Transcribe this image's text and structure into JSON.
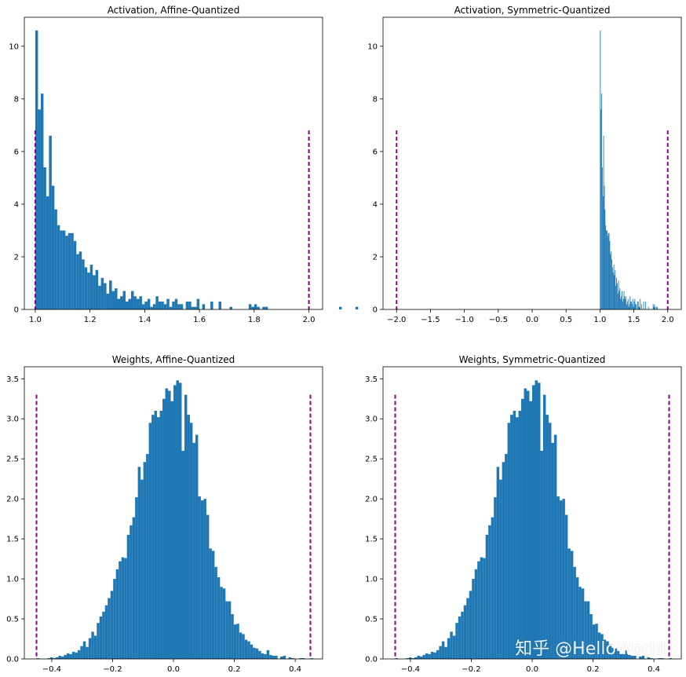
{
  "colors": {
    "bar": "#1f77b4",
    "range_line": "#8b008b"
  },
  "watermark": "知乎 @HelloWorld",
  "chart_data": [
    {
      "type": "bar",
      "title": "Activation, Affine-Quantized",
      "xlim": [
        0.96,
        2.05
      ],
      "ylim": [
        0,
        11.1
      ],
      "xticks": [
        1.0,
        1.2,
        1.4,
        1.6,
        1.8,
        2.0
      ],
      "xtick_labels": [
        "1.0",
        "1.2",
        "1.4",
        "1.6",
        "1.8",
        "2.0"
      ],
      "yticks": [
        0,
        2,
        4,
        6,
        8,
        10
      ],
      "ytick_labels": [
        "0",
        "2",
        "4",
        "6",
        "8",
        "10"
      ],
      "bin_start": 1.0,
      "bin_width": 0.01,
      "values": [
        10.6,
        7.6,
        8.2,
        5.4,
        4.3,
        6.6,
        4.7,
        3.8,
        3.2,
        3.0,
        3.0,
        2.8,
        2.9,
        2.9,
        2.6,
        2.1,
        2.2,
        1.9,
        1.6,
        1.4,
        1.7,
        1.3,
        1.5,
        0.9,
        1.2,
        1.0,
        0.6,
        1.1,
        0.7,
        0.8,
        0.4,
        0.5,
        0.7,
        0.3,
        0.4,
        0.7,
        0.5,
        0.4,
        0.5,
        0.2,
        0.3,
        0.4,
        0.1,
        0.2,
        0.5,
        0.3,
        0.3,
        0.2,
        0.4,
        0.1,
        0.3,
        0.4,
        0.2,
        0.2,
        0.0,
        0.3,
        0.3,
        0.1,
        0.1,
        0.4,
        0.0,
        0.2,
        0.0,
        0.0,
        0.3,
        0.0,
        0.0,
        0.3,
        0.0,
        0.0,
        0.0,
        0.1,
        0.0,
        0.0,
        0.0,
        0.0,
        0.0,
        0.0,
        0.2,
        0.1,
        0.2,
        0.1,
        0.0,
        0.1,
        0.1,
        0.0,
        0.0,
        0.0,
        0.0,
        0.0,
        0.0,
        0.0,
        0.0,
        0.0,
        0.0,
        0.0,
        0.0,
        0.0,
        0.0,
        0.0,
        0.0,
        0.0,
        0.0,
        0.0,
        0.0,
        0.0,
        0.0,
        0.0,
        0.0,
        0.0,
        0.0,
        0.1,
        0.0,
        0.0,
        0.0,
        0.0,
        0.0,
        0.1,
        0.0,
        0.0,
        0.0,
        0.0,
        0.0,
        0.0,
        0.0,
        0.0,
        0.0,
        0.0,
        0.0,
        0.0,
        0.0,
        0.0,
        0.0,
        0.0,
        0.0,
        0.0,
        0.0,
        0.0,
        0.0,
        0.0,
        0.0,
        0.0,
        0.0,
        0.0,
        0.0,
        0.0,
        0.0,
        0.0,
        0.0,
        0.0,
        0.0,
        0.0,
        0.0,
        0.0,
        0.0,
        0.0,
        0.0,
        0.0,
        0.0,
        0.0,
        0.0,
        0.0,
        0.0,
        0.0,
        0.0,
        0.0,
        0.0,
        0.0,
        0.0,
        0.0,
        0.0,
        0.0,
        0.0,
        0.0,
        0.0,
        0.0,
        0.0,
        0.0,
        0.0,
        0.0,
        0.0,
        0.0,
        0.0,
        0.0,
        0.0,
        0.0,
        0.0,
        0.0,
        0.0,
        0.0,
        0.0,
        0.0,
        0.0,
        0.0,
        0.0,
        0.0,
        0.0,
        0.0,
        0.0,
        0.0,
        0.0,
        0.0,
        0.0,
        0.0,
        0.0,
        0.0,
        0.0,
        0.0,
        0.0,
        0.0,
        0.0,
        0.0,
        0.0,
        0.0,
        0.0,
        0.0,
        0.0,
        0.0,
        0.0,
        0.0,
        0.0,
        0.0,
        0.0,
        0.0,
        0.0,
        0.0,
        0.0,
        0.0,
        0.0,
        0.0,
        0.0,
        0.0,
        0.0,
        0.0,
        0.0,
        0.0,
        0.0,
        0.0,
        0.0,
        0.0,
        0.0,
        0.0,
        0.0,
        0.0,
        0.0,
        0.0,
        0.0,
        0.0,
        0.0,
        0.0,
        0.0,
        0.0,
        0.0,
        0.0,
        0.0,
        0.0,
        0.0,
        0.0,
        0.0,
        0.0,
        0.0,
        0.0,
        0.0,
        0.0,
        0.0,
        0.0,
        0.0,
        0.0,
        0.0,
        0.0,
        0.0,
        0.0,
        0.0,
        0.0,
        0.0,
        0.0,
        0.0,
        0.0,
        0.0,
        0.0,
        0.0,
        0.0,
        0.0,
        0.0,
        0.0,
        0.0,
        0.0,
        0.0,
        0.0,
        0.0,
        0.0,
        0.0,
        0.0,
        0.0
      ],
      "range_lines": [
        1.0,
        2.0
      ],
      "range_line_top": 6.8
    },
    {
      "type": "bar",
      "title": "Activation, Symmetric-Quantized",
      "xlim": [
        -2.2,
        2.2
      ],
      "ylim": [
        0,
        11.1
      ],
      "xticks": [
        -2.0,
        -1.5,
        -1.0,
        -0.5,
        0.0,
        0.5,
        1.0,
        1.5,
        2.0
      ],
      "xtick_labels": [
        "−2.0",
        "−1.5",
        "−1.0",
        "−0.5",
        "0.0",
        "0.5",
        "1.0",
        "1.5",
        "2.0"
      ],
      "yticks": [
        0,
        2,
        4,
        6,
        8,
        10
      ],
      "ytick_labels": [
        "0",
        "2",
        "4",
        "6",
        "8",
        "10"
      ],
      "bin_start": 1.0,
      "bin_width": 0.01,
      "values": [
        10.6,
        7.6,
        8.2,
        5.4,
        4.3,
        6.6,
        4.7,
        3.8,
        3.2,
        3.0,
        3.0,
        2.8,
        2.9,
        2.9,
        2.6,
        2.1,
        2.2,
        1.9,
        1.6,
        1.4,
        1.7,
        1.3,
        1.5,
        0.9,
        1.2,
        1.0,
        0.6,
        1.1,
        0.7,
        0.8,
        0.4,
        0.5,
        0.7,
        0.3,
        0.4,
        0.7,
        0.5,
        0.4,
        0.5,
        0.2,
        0.3,
        0.4,
        0.1,
        0.2,
        0.5,
        0.3,
        0.3,
        0.2,
        0.4,
        0.1,
        0.3,
        0.4,
        0.2,
        0.2,
        0.0,
        0.3,
        0.3,
        0.1,
        0.1,
        0.4,
        0.0,
        0.2,
        0.0,
        0.0,
        0.3,
        0.0,
        0.0,
        0.3,
        0.0,
        0.0,
        0.0,
        0.1,
        0.0,
        0.0,
        0.0,
        0.0,
        0.0,
        0.0,
        0.2,
        0.1,
        0.2,
        0.1,
        0.0,
        0.1,
        0.1
      ],
      "range_lines": [
        -2.0,
        2.0
      ],
      "range_line_top": 6.8
    },
    {
      "type": "bar",
      "title": "Weights, Affine-Quantized",
      "xlim": [
        -0.49,
        0.49
      ],
      "ylim": [
        0,
        3.65
      ],
      "xticks": [
        -0.4,
        -0.2,
        0.0,
        0.2,
        0.4
      ],
      "xtick_labels": [
        "−0.4",
        "−0.2",
        "0.0",
        "0.2",
        "0.4"
      ],
      "yticks": [
        0,
        0.5,
        1.0,
        1.5,
        2.0,
        2.5,
        3.0,
        3.5
      ],
      "ytick_labels": [
        "0.0",
        "0.5",
        "1.0",
        "1.5",
        "2.0",
        "2.5",
        "3.0",
        "3.5"
      ],
      "bin_start": -0.45,
      "bin_width": 0.009,
      "values": [
        0.01,
        0.0,
        0.0,
        0.0,
        0.01,
        0.02,
        0.01,
        0.02,
        0.04,
        0.03,
        0.05,
        0.07,
        0.06,
        0.09,
        0.08,
        0.11,
        0.16,
        0.22,
        0.15,
        0.26,
        0.34,
        0.29,
        0.45,
        0.53,
        0.59,
        0.67,
        0.76,
        0.85,
        1.0,
        1.12,
        1.22,
        1.27,
        1.26,
        1.55,
        1.67,
        1.77,
        2.02,
        2.4,
        2.24,
        2.46,
        2.56,
        2.95,
        3.05,
        3.1,
        3.02,
        3.1,
        3.25,
        3.38,
        3.35,
        3.22,
        3.42,
        3.48,
        3.45,
        2.6,
        3.3,
        3.05,
        2.95,
        2.7,
        2.8,
        2.03,
        1.98,
        2.0,
        1.8,
        1.38,
        1.35,
        1.15,
        1.02,
        0.9,
        0.88,
        0.72,
        0.72,
        0.56,
        0.43,
        0.44,
        0.33,
        0.31,
        0.24,
        0.22,
        0.18,
        0.14,
        0.13,
        0.1,
        0.07,
        0.06,
        0.11,
        0.05,
        0.04,
        0.04,
        0.0,
        0.03,
        0.04,
        0.0,
        0.02,
        0.01,
        0.0,
        0.0,
        0.01,
        0.01,
        0.0,
        0.0,
        0.01
      ],
      "range_lines": [
        -0.45,
        0.45
      ],
      "range_line_top": 3.3
    },
    {
      "type": "bar",
      "title": "Weights, Symmetric-Quantized",
      "xlim": [
        -0.49,
        0.49
      ],
      "ylim": [
        0,
        3.65
      ],
      "xticks": [
        -0.4,
        -0.2,
        0.0,
        0.2,
        0.4
      ],
      "xtick_labels": [
        "−0.4",
        "−0.2",
        "0.0",
        "0.2",
        "0.4"
      ],
      "yticks": [
        0,
        0.5,
        1.0,
        1.5,
        2.0,
        2.5,
        3.0,
        3.5
      ],
      "ytick_labels": [
        "0.0",
        "0.5",
        "1.0",
        "1.5",
        "2.0",
        "2.5",
        "3.0",
        "3.5"
      ],
      "bin_start": -0.45,
      "bin_width": 0.009,
      "values": [
        0.01,
        0.0,
        0.0,
        0.0,
        0.01,
        0.02,
        0.01,
        0.02,
        0.04,
        0.03,
        0.05,
        0.07,
        0.06,
        0.09,
        0.08,
        0.11,
        0.16,
        0.22,
        0.15,
        0.26,
        0.34,
        0.29,
        0.45,
        0.53,
        0.59,
        0.67,
        0.76,
        0.85,
        1.0,
        1.12,
        1.22,
        1.27,
        1.26,
        1.55,
        1.67,
        1.77,
        2.02,
        2.4,
        2.24,
        2.46,
        2.56,
        2.95,
        3.05,
        3.1,
        3.02,
        3.1,
        3.25,
        3.38,
        3.35,
        3.22,
        3.42,
        3.48,
        3.45,
        2.6,
        3.3,
        3.05,
        2.95,
        2.7,
        2.8,
        2.03,
        1.98,
        2.0,
        1.8,
        1.38,
        1.35,
        1.15,
        1.02,
        0.9,
        0.88,
        0.72,
        0.72,
        0.56,
        0.43,
        0.44,
        0.33,
        0.31,
        0.24,
        0.22,
        0.18,
        0.14,
        0.13,
        0.1,
        0.07,
        0.06,
        0.11,
        0.05,
        0.04,
        0.04,
        0.0,
        0.03,
        0.04,
        0.0,
        0.02,
        0.01,
        0.0,
        0.0,
        0.01,
        0.01,
        0.0,
        0.0,
        0.01
      ],
      "range_lines": [
        -0.45,
        0.45
      ],
      "range_line_top": 3.3
    }
  ]
}
